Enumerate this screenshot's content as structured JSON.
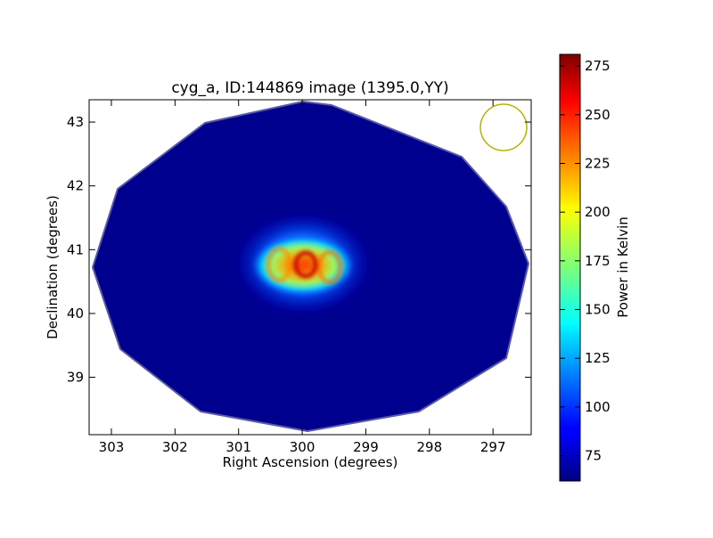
{
  "chart_data": {
    "type": "heatmap",
    "title": "cyg_a, ID:144869 image (1395.0,YY)",
    "xlabel": "Right Ascension (degrees)",
    "ylabel": "Declination (degrees)",
    "x_ticks": [
      "303",
      "302",
      "301",
      "300",
      "299",
      "298",
      "297"
    ],
    "x_tick_values": [
      303,
      302,
      301,
      300,
      299,
      298,
      297
    ],
    "y_ticks": [
      "39",
      "40",
      "41",
      "42",
      "43"
    ],
    "y_tick_values": [
      39,
      40,
      41,
      42,
      43
    ],
    "xlim": [
      303.35,
      296.4
    ],
    "ylim": [
      38.1,
      43.35
    ],
    "source_center": {
      "ra": 299.9,
      "dec": 40.75
    },
    "beam_circle": {
      "ra": 296.8,
      "dec": 42.93,
      "radius_deg": 0.37
    },
    "colorbar": {
      "label": "Power in Kelvin",
      "range": [
        62,
        281
      ],
      "ticks": [
        "75",
        "100",
        "125",
        "150",
        "175",
        "200",
        "225",
        "250",
        "275"
      ],
      "tick_values": [
        75,
        100,
        125,
        150,
        175,
        200,
        225,
        250,
        275
      ],
      "colormap": "jet"
    },
    "background_level_K": 68
  },
  "colors": {
    "beam_circle": "#b5b300",
    "axis": "#000000"
  }
}
